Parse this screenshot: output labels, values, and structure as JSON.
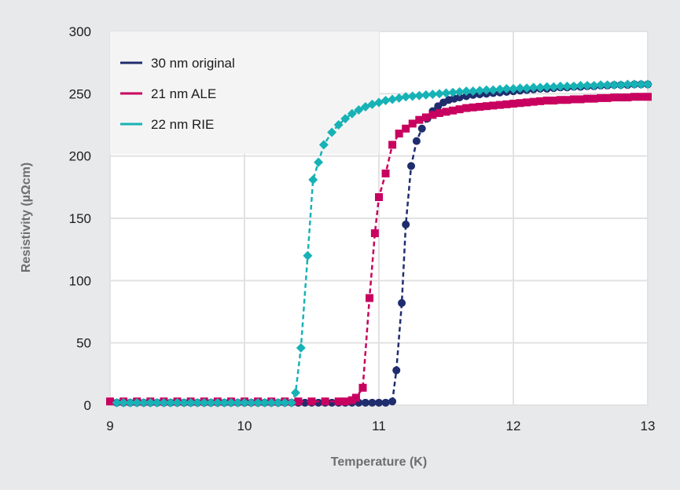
{
  "chart_data": {
    "type": "scatter",
    "title": "",
    "xlabel": "Temperature (K)",
    "ylabel": "Resistivity (µΩcm)",
    "xlim": [
      9,
      13
    ],
    "ylim": [
      0,
      300
    ],
    "xticks": [
      9,
      10,
      11,
      12,
      13
    ],
    "yticks": [
      0,
      50,
      100,
      150,
      200,
      250,
      300
    ],
    "grid": true,
    "legend_position": "top-left",
    "series": [
      {
        "name": "30 nm original",
        "color": "#1f2d6e",
        "marker": "circle",
        "line": "dashed",
        "x": [
          9.05,
          9.1,
          9.15,
          9.2,
          9.25,
          9.3,
          9.35,
          9.4,
          9.45,
          9.5,
          9.55,
          9.6,
          9.65,
          9.7,
          9.75,
          9.8,
          9.85,
          9.9,
          9.95,
          10.0,
          10.05,
          10.1,
          10.15,
          10.2,
          10.25,
          10.3,
          10.35,
          10.4,
          10.45,
          10.5,
          10.55,
          10.6,
          10.65,
          10.7,
          10.75,
          10.8,
          10.85,
          10.9,
          10.95,
          11.0,
          11.05,
          11.1,
          11.13,
          11.17,
          11.2,
          11.24,
          11.28,
          11.32,
          11.36,
          11.4,
          11.44,
          11.48,
          11.52,
          11.56,
          11.6,
          11.65,
          11.7,
          11.75,
          11.8,
          11.85,
          11.9,
          11.95,
          12.0,
          12.05,
          12.1,
          12.15,
          12.2,
          12.25,
          12.3,
          12.35,
          12.4,
          12.45,
          12.5,
          12.55,
          12.6,
          12.65,
          12.7,
          12.75,
          12.8,
          12.85,
          12.9,
          12.95,
          13.0
        ],
        "y": [
          2,
          2,
          2,
          2,
          2,
          2,
          2,
          2,
          2,
          2,
          2,
          2,
          2,
          2,
          2,
          2,
          2,
          2,
          2,
          2,
          2,
          2,
          2,
          2,
          2,
          2,
          2,
          2,
          2,
          2,
          2,
          2,
          2,
          2,
          2,
          2,
          2,
          2,
          2,
          2,
          2,
          3,
          28,
          82,
          145,
          192,
          212,
          222,
          230,
          236,
          240,
          243,
          245,
          246,
          247,
          248,
          249,
          249.5,
          250,
          250.5,
          251,
          251.5,
          252,
          252.5,
          253,
          253.5,
          254,
          254,
          254.5,
          255,
          255,
          255.5,
          255.5,
          256,
          256,
          256.5,
          256.5,
          257,
          257,
          257,
          257.5,
          257.5,
          257.5
        ]
      },
      {
        "name": "21 nm ALE",
        "color": "#c8005f",
        "marker": "square",
        "line": "dashed",
        "x": [
          9.0,
          9.1,
          9.2,
          9.3,
          9.4,
          9.5,
          9.6,
          9.7,
          9.8,
          9.9,
          10.0,
          10.1,
          10.2,
          10.3,
          10.4,
          10.5,
          10.6,
          10.7,
          10.75,
          10.8,
          10.83,
          10.88,
          10.93,
          10.97,
          11.0,
          11.05,
          11.1,
          11.15,
          11.2,
          11.25,
          11.3,
          11.35,
          11.4,
          11.45,
          11.5,
          11.55,
          11.6,
          11.65,
          11.7,
          11.75,
          11.8,
          11.85,
          11.9,
          11.95,
          12.0,
          12.05,
          12.1,
          12.15,
          12.2,
          12.25,
          12.3,
          12.35,
          12.4,
          12.45,
          12.5,
          12.55,
          12.6,
          12.65,
          12.7,
          12.75,
          12.8,
          12.85,
          12.9,
          12.95,
          13.0
        ],
        "y": [
          3,
          3,
          3,
          3,
          3,
          3,
          3,
          3,
          3,
          3,
          3,
          3,
          3,
          3,
          3,
          3,
          3,
          3,
          3,
          4,
          6,
          14,
          86,
          138,
          167,
          186,
          209,
          218,
          222,
          226,
          229,
          231,
          233,
          234.5,
          235.5,
          236.5,
          237.5,
          238.5,
          239,
          239.5,
          240,
          240.5,
          241,
          241.5,
          242,
          242.5,
          243,
          243.5,
          244,
          244.5,
          244.5,
          245,
          245,
          245.5,
          245.5,
          246,
          246,
          246.5,
          246.5,
          247,
          247,
          247,
          247.5,
          247.5,
          247.5
        ]
      },
      {
        "name": "22 nm RIE",
        "color": "#17b2b6",
        "marker": "diamond",
        "line": "dashed",
        "x": [
          9.05,
          9.1,
          9.15,
          9.2,
          9.25,
          9.3,
          9.35,
          9.4,
          9.45,
          9.5,
          9.55,
          9.6,
          9.65,
          9.7,
          9.75,
          9.8,
          9.85,
          9.9,
          9.95,
          10.0,
          10.05,
          10.1,
          10.15,
          10.2,
          10.25,
          10.3,
          10.35,
          10.38,
          10.42,
          10.47,
          10.51,
          10.55,
          10.59,
          10.65,
          10.7,
          10.75,
          10.8,
          10.85,
          10.9,
          10.95,
          11.0,
          11.05,
          11.1,
          11.15,
          11.2,
          11.25,
          11.3,
          11.35,
          11.4,
          11.45,
          11.5,
          11.55,
          11.6,
          11.65,
          11.7,
          11.75,
          11.8,
          11.85,
          11.9,
          11.95,
          12.0,
          12.05,
          12.1,
          12.15,
          12.2,
          12.25,
          12.3,
          12.35,
          12.4,
          12.45,
          12.5,
          12.55,
          12.6,
          12.65,
          12.7,
          12.75,
          12.8,
          12.85,
          12.9,
          12.95,
          13.0
        ],
        "y": [
          2,
          2,
          2,
          2,
          2,
          2,
          2,
          2,
          2,
          2,
          2,
          2,
          2,
          2,
          2,
          2,
          2,
          2,
          2,
          2,
          2,
          2,
          2,
          2,
          2,
          2,
          2,
          10,
          46,
          120,
          181,
          195,
          209,
          219,
          225,
          230,
          234,
          237,
          239.5,
          241.5,
          243,
          244.5,
          245.5,
          246.5,
          247.5,
          248,
          248.5,
          249,
          249.5,
          250,
          250.5,
          251,
          251.5,
          252,
          252,
          252.5,
          253,
          253,
          253.5,
          254,
          254,
          254.5,
          254.5,
          255,
          255,
          255.5,
          255.5,
          256,
          256,
          256,
          256.5,
          256.5,
          256.5,
          257,
          257,
          257,
          257,
          257.5,
          257.5,
          257.5,
          257.5
        ]
      }
    ]
  }
}
